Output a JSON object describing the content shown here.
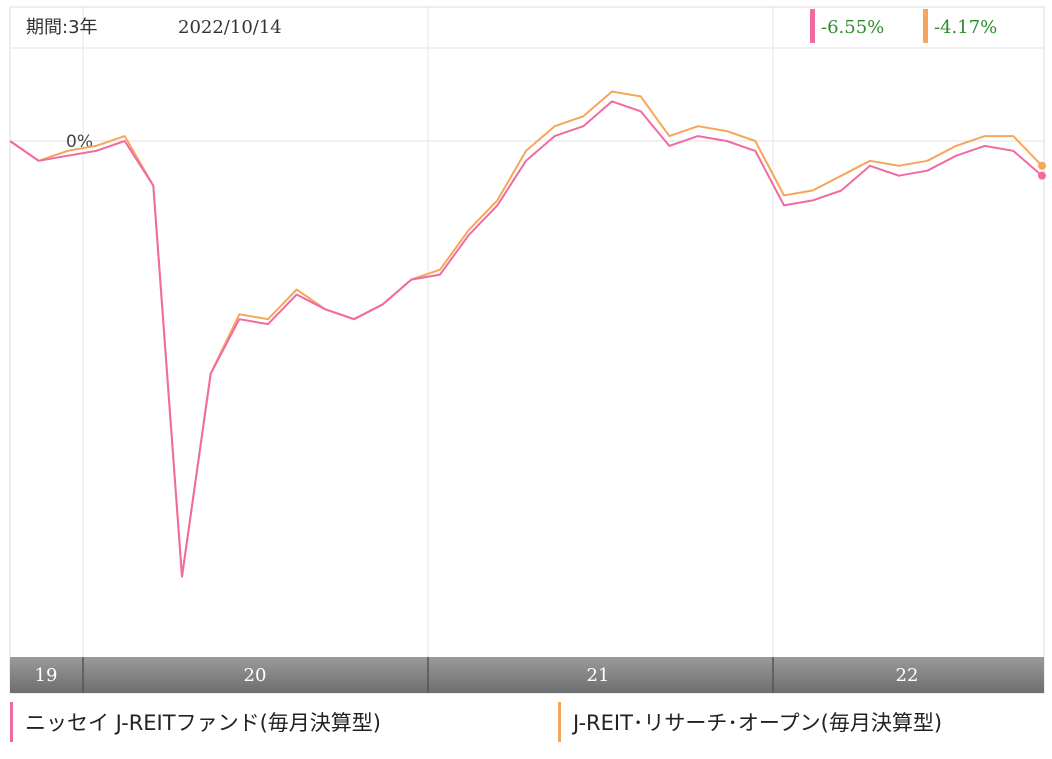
{
  "header": {
    "period": "期間:3年",
    "date": "2022/10/14"
  },
  "chart_data": {
    "type": "line",
    "x": [
      "2019-10",
      "2019-11",
      "2019-12",
      "2020-01",
      "2020-02",
      "2020-03",
      "2020-04",
      "2020-05",
      "2020-06",
      "2020-07",
      "2020-08",
      "2020-09",
      "2020-10",
      "2020-11",
      "2020-12",
      "2021-01",
      "2021-02",
      "2021-03",
      "2021-04",
      "2021-05",
      "2021-06",
      "2021-07",
      "2021-08",
      "2021-09",
      "2021-10",
      "2021-11",
      "2021-12",
      "2022-01",
      "2022-02",
      "2022-03",
      "2022-04",
      "2022-05",
      "2022-06",
      "2022-07",
      "2022-08",
      "2022-09",
      "2022-10"
    ],
    "series": [
      {
        "name": "ニッセイ J-REITファンド(毎月決算型)",
        "color": "#f06ba2",
        "end_label": "-6.55%",
        "values": [
          0,
          -4,
          -3,
          -2,
          0,
          -9,
          -88,
          -47,
          -36,
          -37,
          -31,
          -34,
          -36,
          -33,
          -28,
          -27,
          -19,
          -13,
          -4,
          1,
          3,
          8,
          6,
          -1,
          1,
          0,
          -2,
          -13,
          -12,
          -10,
          -5,
          -7,
          -6,
          -3,
          -1,
          -2,
          -7
        ]
      },
      {
        "name": "J-REIT･リサーチ･オープン(毎月決算型)",
        "color": "#f5a65b",
        "end_label": "-4.17%",
        "values": [
          0,
          -4,
          -2,
          -1,
          1,
          -9,
          -88,
          -47,
          -35,
          -36,
          -30,
          -34,
          -36,
          -33,
          -28,
          -26,
          -18,
          -12,
          -2,
          3,
          5,
          10,
          9,
          1,
          3,
          2,
          0,
          -11,
          -10,
          -7,
          -4,
          -5,
          -4,
          -1,
          1,
          1,
          -5
        ]
      }
    ],
    "xticks": [
      "19",
      "20",
      "21",
      "22"
    ],
    "zero_label": "0%"
  },
  "legend": [
    {
      "label": "ニッセイ J-REITファンド(毎月決算型)",
      "color": "#f06ba2"
    },
    {
      "label": "J-REIT･リサーチ･オープン(毎月決算型)",
      "color": "#f5a65b"
    }
  ]
}
